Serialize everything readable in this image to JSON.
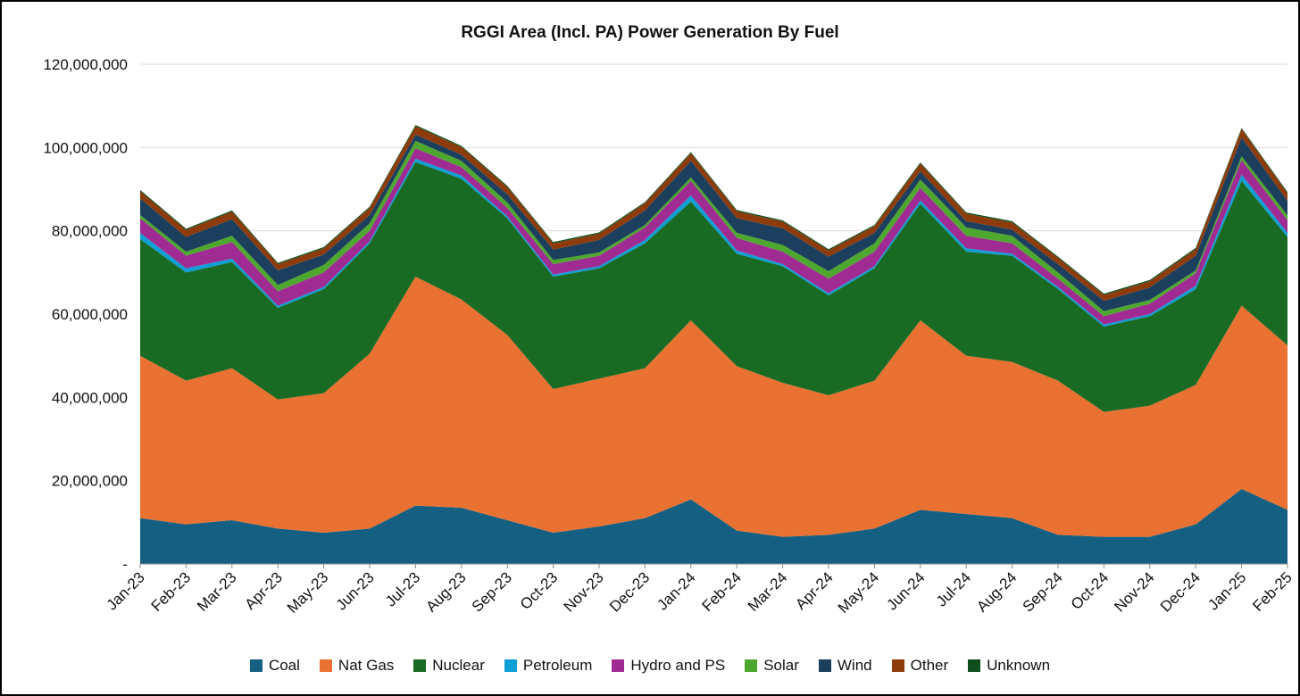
{
  "chart_data": {
    "type": "area",
    "stacked": true,
    "title": "RGGI Area (Incl. PA) Power Generation By Fuel",
    "xlabel": "",
    "ylabel": "",
    "ylim": [
      0,
      120000000
    ],
    "grid": true,
    "legend_position": "bottom",
    "y_tick_values": [
      0,
      20000000,
      40000000,
      60000000,
      80000000,
      100000000,
      120000000
    ],
    "y_tick_labels": [
      "-",
      "20,000,000",
      "40,000,000",
      "60,000,000",
      "80,000,000",
      "100,000,000",
      "120,000,000"
    ],
    "categories": [
      "Jan-23",
      "Feb-23",
      "Mar-23",
      "Apr-23",
      "May-23",
      "Jun-23",
      "Jul-23",
      "Aug-23",
      "Sep-23",
      "Oct-23",
      "Nov-23",
      "Dec-23",
      "Jan-24",
      "Feb-24",
      "Mar-24",
      "Apr-24",
      "May-24",
      "Jun-24",
      "Jul-24",
      "Aug-24",
      "Sep-24",
      "Oct-24",
      "Nov-24",
      "Dec-24",
      "Jan-25",
      "Feb-25"
    ],
    "series": [
      {
        "name": "Coal",
        "color": "#156082",
        "values": [
          11000000,
          9500000,
          10500000,
          8500000,
          7500000,
          8500000,
          14000000,
          13500000,
          10500000,
          7500000,
          9000000,
          11000000,
          15500000,
          8000000,
          6500000,
          7000000,
          8500000,
          13000000,
          12000000,
          11000000,
          7000000,
          6500000,
          6500000,
          9500000,
          18000000,
          13000000
        ]
      },
      {
        "name": "Nat Gas",
        "color": "#E97132",
        "values": [
          39000000,
          34500000,
          36500000,
          31000000,
          33500000,
          42000000,
          55000000,
          50000000,
          44500000,
          34500000,
          35500000,
          36000000,
          43000000,
          39500000,
          37000000,
          33500000,
          35500000,
          45500000,
          38000000,
          37500000,
          37000000,
          30000000,
          31500000,
          33500000,
          44000000,
          39500000
        ]
      },
      {
        "name": "Nuclear",
        "color": "#196B24",
        "values": [
          28000000,
          26000000,
          25500000,
          22000000,
          25000000,
          26500000,
          27500000,
          29000000,
          28000000,
          27000000,
          26500000,
          30000000,
          28500000,
          27000000,
          28000000,
          24000000,
          27000000,
          28000000,
          25000000,
          25500000,
          22000000,
          20500000,
          21500000,
          23000000,
          30000000,
          26000000
        ]
      },
      {
        "name": "Petroleum",
        "color": "#0F9ED5",
        "values": [
          1500000,
          1000000,
          800000,
          500000,
          500000,
          500000,
          800000,
          800000,
          500000,
          500000,
          500000,
          800000,
          1500000,
          800000,
          500000,
          500000,
          500000,
          800000,
          800000,
          500000,
          500000,
          500000,
          500000,
          800000,
          1500000,
          1000000
        ]
      },
      {
        "name": "Hydro and PS",
        "color": "#A02B93",
        "values": [
          3500000,
          3000000,
          4000000,
          3500000,
          3500000,
          2500000,
          2500000,
          2000000,
          2000000,
          2500000,
          2500000,
          3000000,
          3500000,
          3000000,
          3000000,
          3500000,
          3500000,
          3000000,
          3000000,
          2500000,
          2000000,
          2000000,
          2500000,
          3000000,
          3500000,
          3000000
        ]
      },
      {
        "name": "Solar",
        "color": "#4EA72E",
        "values": [
          800000,
          1000000,
          1500000,
          1500000,
          1800000,
          1800000,
          1800000,
          1500000,
          1300000,
          1000000,
          800000,
          600000,
          800000,
          1200000,
          1600000,
          1800000,
          2000000,
          2000000,
          2000000,
          1800000,
          1500000,
          1200000,
          900000,
          700000,
          900000,
          1200000
        ]
      },
      {
        "name": "Wind",
        "color": "#1C3F5E",
        "values": [
          4000000,
          3500000,
          4000000,
          3500000,
          2500000,
          2000000,
          1500000,
          1500000,
          2000000,
          2500000,
          3000000,
          3500000,
          4000000,
          3500000,
          4000000,
          3500000,
          2500000,
          2000000,
          1500000,
          1500000,
          2000000,
          2500000,
          3000000,
          3500000,
          4500000,
          3500000
        ]
      },
      {
        "name": "Other",
        "color": "#8E3B0B",
        "values": [
          1700000,
          1700000,
          1800000,
          1500000,
          1500000,
          1700000,
          2000000,
          1800000,
          1700000,
          1500000,
          1500000,
          1700000,
          1800000,
          1700000,
          1600000,
          1500000,
          1600000,
          1800000,
          1800000,
          1700000,
          1500000,
          1400000,
          1500000,
          1600000,
          2000000,
          1800000
        ]
      },
      {
        "name": "Unknown",
        "color": "#0E4D1C",
        "values": [
          300000,
          300000,
          300000,
          300000,
          300000,
          300000,
          300000,
          300000,
          300000,
          300000,
          300000,
          300000,
          300000,
          300000,
          300000,
          300000,
          300000,
          300000,
          300000,
          300000,
          300000,
          300000,
          300000,
          300000,
          300000,
          300000
        ]
      }
    ],
    "colors": {
      "gridline": "#D9D9D9",
      "axis_line": "#898989",
      "tick_text": "#111111"
    }
  }
}
